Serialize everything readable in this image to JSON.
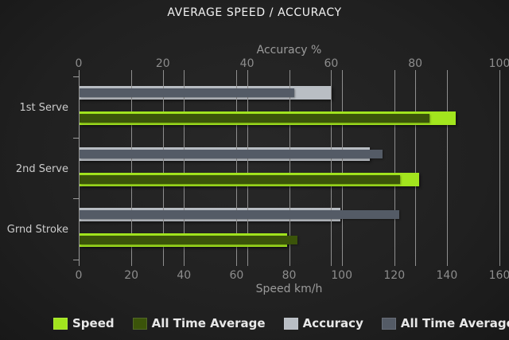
{
  "title": "AVERAGE SPEED / ACCURACY",
  "chart_data": {
    "type": "bar",
    "orientation": "horizontal",
    "grid": true,
    "categories": [
      "1st Serve",
      "2nd Serve",
      "Grnd Stroke"
    ],
    "axes": {
      "top": {
        "label": "Accuracy %",
        "min": 0,
        "max": 100,
        "ticks": [
          0,
          20,
          40,
          60,
          80,
          100
        ]
      },
      "bottom": {
        "label": "Speed km/h",
        "min": 0,
        "max": 160,
        "ticks": [
          0,
          20,
          40,
          60,
          80,
          100,
          120,
          140,
          160
        ]
      }
    },
    "series": [
      {
        "name": "Speed",
        "axis": "bottom",
        "role": "outer",
        "color": "#a2e51e",
        "values": [
          143,
          129,
          79
        ]
      },
      {
        "name": "All Time Average",
        "axis": "bottom",
        "role": "inner",
        "color": "#3b540a",
        "values": [
          133,
          122,
          83
        ]
      },
      {
        "name": "Accuracy",
        "axis": "top",
        "role": "outer",
        "color": "#b9bec4",
        "values": [
          60,
          69,
          62
        ]
      },
      {
        "name": "All Time Average",
        "axis": "top",
        "role": "inner",
        "color": "#545b66",
        "values": [
          51,
          72,
          76
        ]
      }
    ],
    "legend_position": "bottom"
  },
  "colors": {
    "background": "#202020",
    "gridline": "#8f8f8f",
    "title_text": "#f2f2f2",
    "axis_text": "#9b9b9b",
    "tick_text": "#8d8d8d",
    "category_text": "#cccccc",
    "legend_text": "#e8e8e8"
  }
}
